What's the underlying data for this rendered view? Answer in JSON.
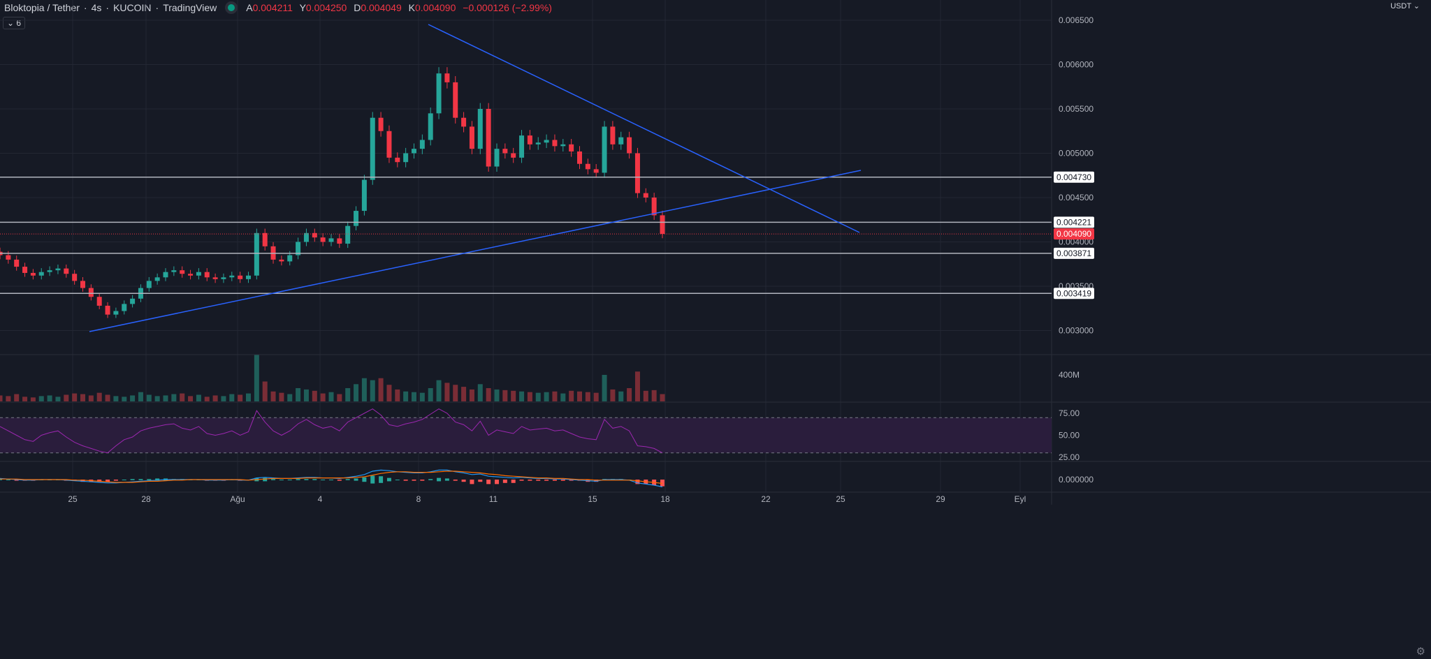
{
  "header": {
    "symbol": "Bloktopia / Tether",
    "interval": "4s",
    "exchange": "KUCOIN",
    "source": "TradingView",
    "ohlc": [
      {
        "k": "A",
        "v": "0.004211"
      },
      {
        "k": "Y",
        "v": "0.004250"
      },
      {
        "k": "D",
        "v": "0.004049"
      },
      {
        "k": "K",
        "v": "0.004090"
      },
      {
        "k": "",
        "v": "−0.000126 (−2.99%)"
      }
    ]
  },
  "indicator_toggle": "⌄ 6",
  "currency": "USDT ⌄",
  "colors": {
    "up": "#26a69a",
    "down": "#f23645",
    "trendline": "#2962ff",
    "hline": "#b2b5be",
    "rsi": "#9c27b0",
    "macd": "#2196f3",
    "signal": "#ff6d00"
  },
  "chart_data": {
    "type": "candlestick",
    "price_ticks": [
      "0.006500",
      "0.006000",
      "0.005500",
      "0.005000",
      "0.004500",
      "0.004000",
      "0.003500",
      "0.003000"
    ],
    "price_values": [
      0.0065,
      0.006,
      0.0055,
      0.005,
      0.0045,
      0.004,
      0.0035,
      0.003
    ],
    "time_ticks": [
      "25",
      "28",
      "Ağu",
      "4",
      "8",
      "11",
      "15",
      "18",
      "22",
      "25",
      "29",
      "Eyl"
    ],
    "closes": [
      0.00385,
      0.0038,
      0.00372,
      0.00365,
      0.00362,
      0.00366,
      0.00368,
      0.0037,
      0.00364,
      0.00356,
      0.00348,
      0.00338,
      0.00328,
      0.00318,
      0.00322,
      0.0033,
      0.00336,
      0.00348,
      0.00356,
      0.0036,
      0.00366,
      0.00368,
      0.00364,
      0.00362,
      0.00366,
      0.0036,
      0.00358,
      0.0036,
      0.00362,
      0.00358,
      0.00362,
      0.0041,
      0.00395,
      0.0038,
      0.00378,
      0.00385,
      0.004,
      0.0041,
      0.00405,
      0.004,
      0.00404,
      0.00398,
      0.00418,
      0.00435,
      0.0047,
      0.0054,
      0.00525,
      0.00495,
      0.0049,
      0.005,
      0.00505,
      0.00515,
      0.00545,
      0.0059,
      0.0058,
      0.0054,
      0.0053,
      0.00505,
      0.0055,
      0.00485,
      0.00505,
      0.005,
      0.00495,
      0.0052,
      0.0051,
      0.00512,
      0.00515,
      0.00508,
      0.0051,
      0.00502,
      0.00488,
      0.00482,
      0.00478,
      0.0053,
      0.0051,
      0.00518,
      0.005,
      0.00455,
      0.0045,
      0.0043,
      0.00409
    ],
    "volume_ticks": [
      "400M"
    ],
    "volumes_m": [
      90,
      80,
      110,
      70,
      60,
      80,
      90,
      70,
      100,
      120,
      110,
      90,
      130,
      100,
      80,
      70,
      90,
      140,
      100,
      80,
      90,
      110,
      120,
      80,
      100,
      70,
      90,
      80,
      110,
      100,
      120,
      700,
      300,
      150,
      130,
      110,
      200,
      180,
      160,
      120,
      140,
      110,
      200,
      260,
      350,
      320,
      350,
      250,
      180,
      150,
      140,
      130,
      200,
      320,
      280,
      250,
      220,
      180,
      260,
      200,
      180,
      170,
      160,
      150,
      140,
      130,
      140,
      150,
      120,
      160,
      150,
      140,
      130,
      400,
      180,
      150,
      200,
      450,
      160,
      170,
      110
    ],
    "hlines": [
      {
        "label": "0.004730",
        "price": 0.00473
      },
      {
        "label": "0.004221",
        "price": 0.004221
      },
      {
        "label": "0.003871",
        "price": 0.003871
      },
      {
        "label": "0.003419",
        "price": 0.003419
      }
    ],
    "last_price": {
      "label": "0.004090",
      "price": 0.00409
    },
    "trendlines": [
      {
        "from": [
          "Jul 26",
          0.003015
        ],
        "to": [
          "Aug 25",
          0.00482
        ]
      },
      {
        "from": [
          "Aug 8",
          0.00646
        ],
        "to": [
          "Aug 25",
          0.00412
        ]
      }
    ],
    "rsi_ticks": [
      "75.00",
      "50.00",
      "25.00"
    ],
    "rsi_values": [
      60,
      55,
      50,
      45,
      43,
      50,
      53,
      55,
      48,
      42,
      38,
      35,
      32,
      30,
      38,
      45,
      48,
      55,
      58,
      60,
      62,
      63,
      58,
      56,
      60,
      52,
      50,
      52,
      55,
      50,
      54,
      78,
      65,
      55,
      50,
      55,
      63,
      68,
      62,
      58,
      60,
      55,
      65,
      70,
      75,
      80,
      73,
      62,
      60,
      63,
      65,
      68,
      74,
      80,
      75,
      65,
      62,
      55,
      66,
      50,
      56,
      54,
      52,
      60,
      56,
      57,
      58,
      55,
      56,
      52,
      48,
      46,
      45,
      68,
      58,
      60,
      55,
      38,
      37,
      35,
      30
    ],
    "macd_ticks": [
      "0.000000"
    ],
    "macd_values": [
      2,
      1,
      0,
      -1,
      -1,
      0,
      0,
      0,
      -1,
      -2,
      -3,
      -4,
      -5,
      -6,
      -6,
      -5,
      -4,
      -3,
      -2,
      -1,
      0,
      0,
      0,
      0,
      0,
      -1,
      -1,
      -1,
      0,
      -1,
      -1,
      3,
      4,
      3,
      2,
      2,
      3,
      4,
      4,
      3,
      3,
      2,
      4,
      6,
      9,
      15,
      17,
      16,
      14,
      13,
      12,
      12,
      14,
      17,
      17,
      14,
      12,
      9,
      10,
      6,
      5,
      4,
      3,
      4,
      3,
      2,
      2,
      1,
      1,
      0,
      -1,
      -2,
      -3,
      0,
      0,
      0,
      -1,
      -6,
      -8,
      -10,
      -13
    ],
    "signal_values": [
      1,
      1,
      1,
      0,
      0,
      0,
      0,
      0,
      0,
      -1,
      -1,
      -2,
      -3,
      -4,
      -5,
      -5,
      -5,
      -4,
      -3,
      -3,
      -2,
      -1,
      -1,
      0,
      0,
      0,
      0,
      0,
      0,
      0,
      -1,
      0,
      1,
      2,
      2,
      2,
      2,
      3,
      3,
      3,
      3,
      3,
      3,
      4,
      5,
      8,
      11,
      13,
      14,
      14,
      13,
      13,
      13,
      14,
      15,
      15,
      14,
      13,
      12,
      10,
      9,
      7,
      6,
      5,
      4,
      3,
      3,
      2,
      2,
      1,
      0,
      0,
      -1,
      -1,
      -1,
      -1,
      -1,
      -2,
      -4,
      -5,
      -7
    ]
  }
}
